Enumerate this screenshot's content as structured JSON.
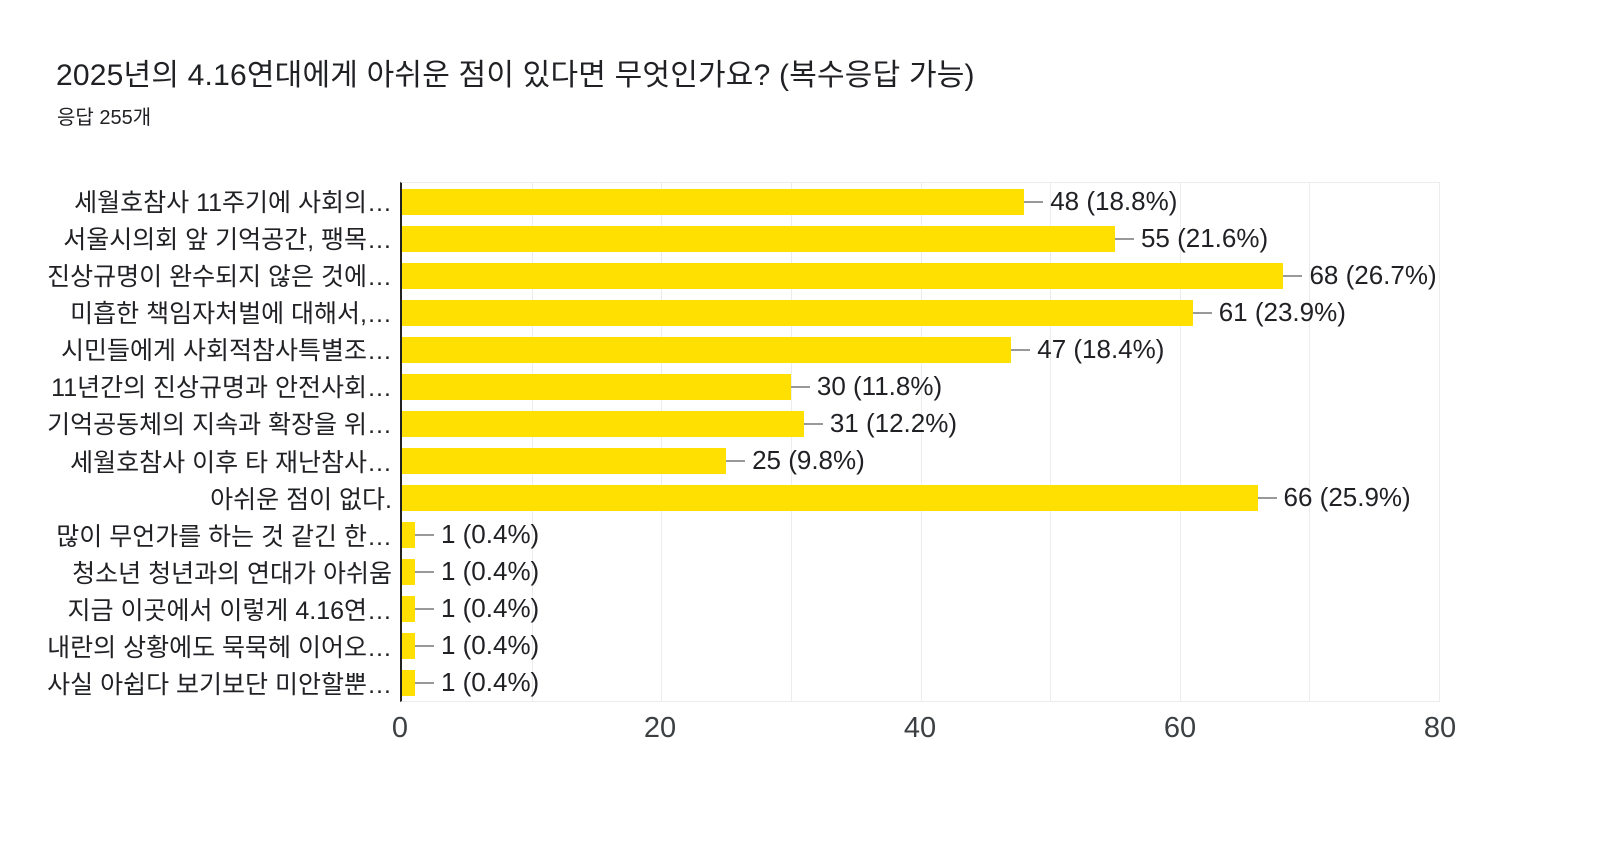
{
  "header": {
    "title": "2025년의 4.16연대에게 아쉬운 점이 있다면 무엇인가요? (복수응답 가능)",
    "subtitle": "응답 255개"
  },
  "chart_data": {
    "type": "bar",
    "orientation": "horizontal",
    "title": "2025년의 4.16연대에게 아쉬운 점이 있다면 무엇인가요? (복수응답 가능)",
    "subtitle": "응답 255개",
    "total_responses": 255,
    "categories": [
      "세월호참사 11주기에 사회의…",
      "서울시의회 앞 기억공간, 팽목…",
      "진상규명이 완수되지 않은 것에…",
      "미흡한 책임자처벌에 대해서,…",
      "시민들에게 사회적참사특별조…",
      "11년간의 진상규명과 안전사회…",
      "기억공동체의 지속과 확장을 위…",
      "세월호참사 이후 타 재난참사…",
      "아쉬운 점이 없다.",
      "많이 무언가를 하는 것 같긴 한…",
      "청소년 청년과의 연대가 아쉬움",
      "지금 이곳에서 이렇게 4.16연…",
      "내란의 상황에도 묵묵헤 이어오…",
      "사실 아쉽다 보기보단 미안할뿐…"
    ],
    "values": [
      48,
      55,
      68,
      61,
      47,
      30,
      31,
      25,
      66,
      1,
      1,
      1,
      1,
      1
    ],
    "percentages": [
      18.8,
      21.6,
      26.7,
      23.9,
      18.4,
      11.8,
      12.2,
      9.8,
      25.9,
      0.4,
      0.4,
      0.4,
      0.4,
      0.4
    ],
    "value_labels": [
      "48 (18.8%)",
      "55 (21.6%)",
      "68 (26.7%)",
      "61 (23.9%)",
      "47 (18.4%)",
      "30 (11.8%)",
      "31 (12.2%)",
      "25 (9.8%)",
      "66 (25.9%)",
      "1 (0.4%)",
      "1 (0.4%)",
      "1 (0.4%)",
      "1 (0.4%)",
      "1 (0.4%)"
    ],
    "xlabel": "",
    "ylabel": "",
    "xlim": [
      0,
      80
    ],
    "xticks": [
      0,
      20,
      40,
      60,
      80
    ],
    "gridline_step": 10,
    "grid": true,
    "legend": "none",
    "bar_color": "#FFE000",
    "axis_color": "#212121",
    "gridline_color": "#ececec",
    "connector_color": "#999999",
    "text_color": "#202124",
    "tick_color": "#3c4043",
    "background_color": "#ffffff"
  }
}
